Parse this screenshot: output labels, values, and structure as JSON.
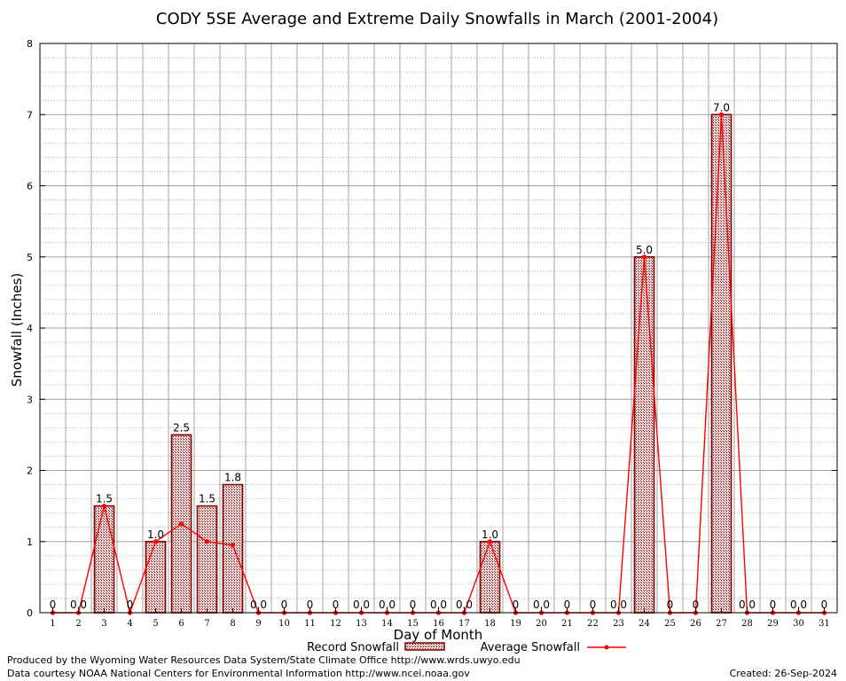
{
  "chart_data": {
    "type": "bar",
    "title": "CODY 5SE Average and Extreme Daily Snowfalls in March (2001-2004)",
    "xlabel": "Day of Month",
    "ylabel": "Snowfall (Inches)",
    "ylim": [
      0,
      8
    ],
    "yticks": [
      "0",
      "1",
      "2",
      "3",
      "4",
      "5",
      "6",
      "7",
      "8"
    ],
    "categories": [
      "1",
      "2",
      "3",
      "4",
      "5",
      "6",
      "7",
      "8",
      "9",
      "10",
      "11",
      "12",
      "13",
      "14",
      "15",
      "16",
      "17",
      "18",
      "19",
      "20",
      "21",
      "22",
      "23",
      "24",
      "25",
      "26",
      "27",
      "28",
      "29",
      "30",
      "31"
    ],
    "series": [
      {
        "name": "Record Snowfall",
        "values": [
          0,
          0,
          1.5,
          0,
          1.0,
          2.5,
          1.5,
          1.8,
          0,
          0,
          0,
          0,
          0,
          0,
          0,
          0,
          0,
          1.0,
          0,
          0,
          0,
          0,
          0,
          5.0,
          0,
          0,
          7.0,
          0,
          0,
          0,
          0
        ],
        "labels": [
          "0",
          "0.0",
          "1.5",
          "0",
          "1.0",
          "2.5",
          "1.5",
          "1.8",
          "0.0",
          "0",
          "0",
          "0",
          "0.0",
          "0.0",
          "0",
          "0.0",
          "0.0",
          "1.0",
          "0",
          "0.0",
          "0",
          "0",
          "0.0",
          "5.0",
          "0",
          "0",
          "7.0",
          "0.0",
          "0",
          "0.0",
          "0"
        ]
      },
      {
        "name": "Average Snowfall",
        "values": [
          0,
          0,
          1.5,
          0,
          1.0,
          1.25,
          1.0,
          0.95,
          0,
          0,
          0,
          0,
          0,
          0,
          0,
          0,
          0,
          1.0,
          0,
          0,
          0,
          0,
          0,
          5.0,
          0,
          0,
          7.0,
          0,
          0,
          0,
          0
        ]
      }
    ],
    "colors": {
      "bar_fill": "#c9a6a6",
      "bar_stroke": "#800000",
      "line": "#ff0000",
      "grid": "#a0a0a0"
    }
  },
  "footer": {
    "produced_by": "Produced by the Wyoming Water Resources Data System/State Climate Office http://www.wrds.uwyo.edu",
    "courtesy": "Data courtesy NOAA National Centers for Environmental Information http://www.ncei.noaa.gov",
    "created": "Created:  26-Sep-2024"
  }
}
